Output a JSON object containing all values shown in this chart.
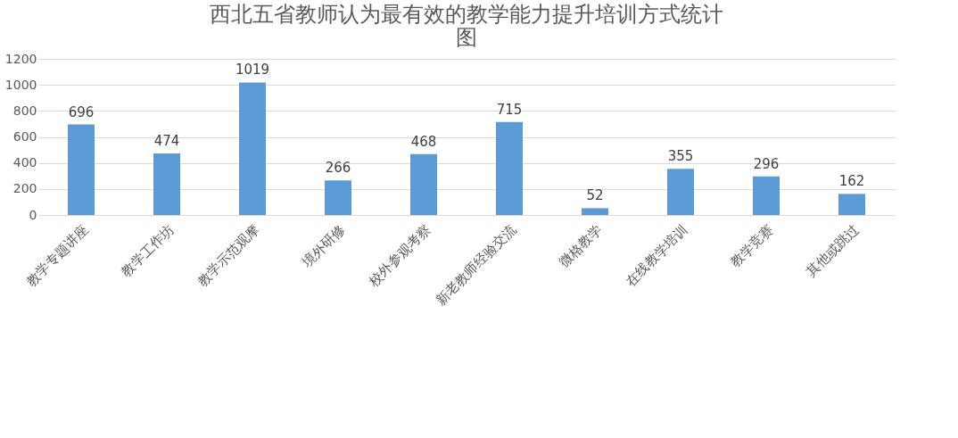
{
  "chart_data": {
    "type": "bar",
    "title": "西北五省教师认为最有效的教学能力提升培训方式统计图",
    "categories": [
      "教学专题讲座",
      "教学工作坊",
      "教学示范观摩",
      "境外研修",
      "校外参观考察",
      "新老教师经验交流",
      "微格教学",
      "在线教学培训",
      "教学竞赛",
      "其他或跳过"
    ],
    "values": [
      696,
      474,
      1019,
      266,
      468,
      715,
      52,
      355,
      296,
      162
    ],
    "color": "#5b9bd5",
    "ylim": [
      0,
      1200
    ],
    "yticks": [
      0,
      200,
      400,
      600,
      800,
      1000,
      1200
    ],
    "grid": "y",
    "data_labels": true
  }
}
